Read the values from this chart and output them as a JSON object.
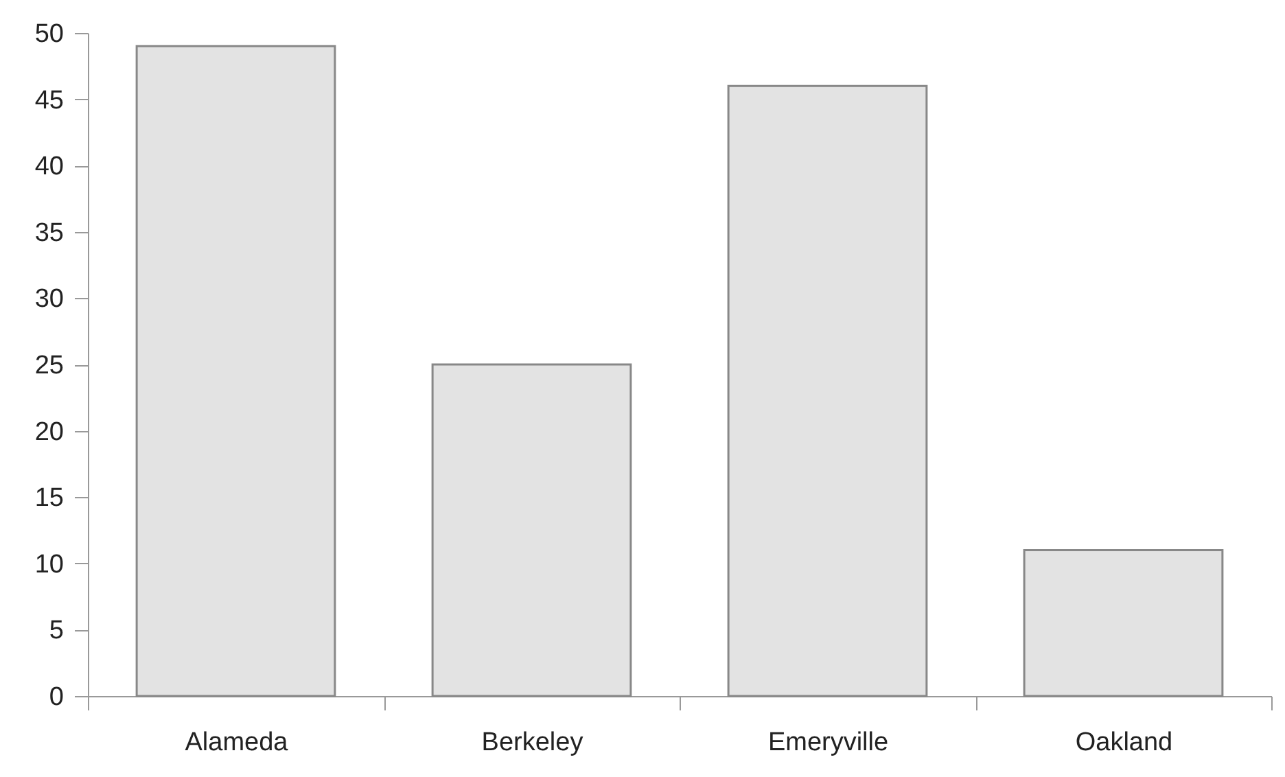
{
  "chart_data": {
    "type": "bar",
    "categories": [
      "Alameda",
      "Berkeley",
      "Emeryville",
      "Oakland"
    ],
    "values": [
      49,
      25,
      46,
      11
    ],
    "color": "#e3e3e3",
    "ylim": [
      0,
      50
    ],
    "yticks": [
      0,
      5,
      10,
      15,
      20,
      25,
      30,
      35,
      40,
      45,
      50
    ],
    "grid": false
  }
}
